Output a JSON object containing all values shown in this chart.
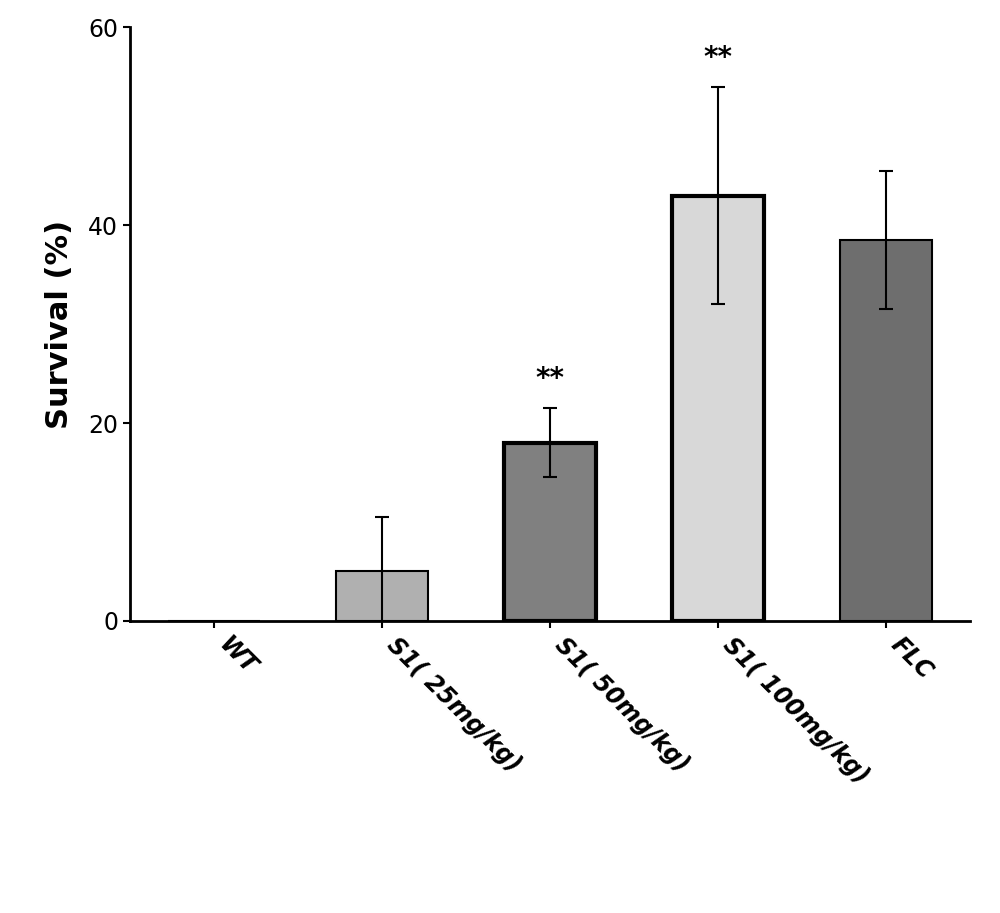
{
  "categories": [
    "WT",
    "S1( 25mg/kg)",
    "S1( 50mg/kg)",
    "S1( 100mg/kg)",
    "FLC"
  ],
  "values": [
    0,
    5.0,
    18.0,
    43.0,
    38.5
  ],
  "errors": [
    0,
    5.5,
    3.5,
    11.0,
    7.0
  ],
  "bar_colors": [
    "#b0b0b0",
    "#b0b0b0",
    "#808080",
    "#d8d8d8",
    "#6e6e6e"
  ],
  "bar_edgecolors": [
    "#000000",
    "#000000",
    "#000000",
    "#000000",
    "#000000"
  ],
  "bar_linewidths": [
    1.5,
    1.5,
    3.0,
    3.0,
    1.5
  ],
  "significance": [
    "",
    "",
    "**",
    "**",
    ""
  ],
  "ylabel": "Survival (%)",
  "ylim": [
    0,
    60
  ],
  "yticks": [
    0,
    20,
    40,
    60
  ],
  "bar_width": 0.55,
  "sig_fontsize": 20,
  "ylabel_fontsize": 22,
  "tick_fontsize": 17,
  "xtick_rotation": -45,
  "background_color": "#ffffff",
  "spine_linewidth": 2.0,
  "errorbar_linewidth": 1.5,
  "errorbar_capsize": 5,
  "errorbar_capthick": 1.5
}
